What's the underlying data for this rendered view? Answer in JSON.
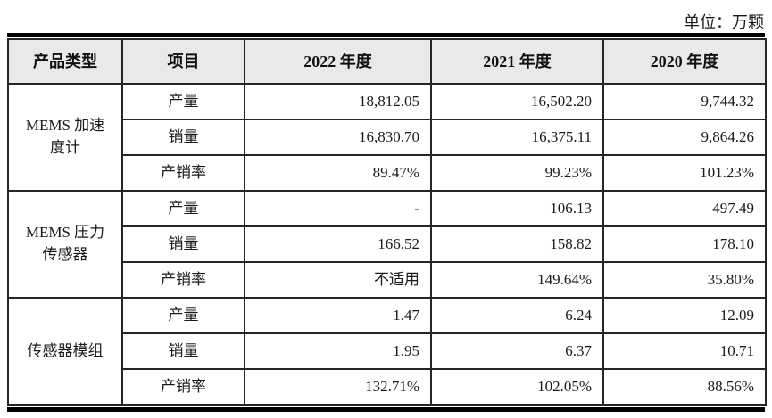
{
  "unit_label": "单位：万颗",
  "table": {
    "headers": [
      "产品类型",
      "项目",
      "2022 年度",
      "2021 年度",
      "2020 年度"
    ],
    "groups": [
      {
        "product": "MEMS 加速度计",
        "rows": [
          {
            "item": "产量",
            "values": [
              "18,812.05",
              "16,502.20",
              "9,744.32"
            ]
          },
          {
            "item": "销量",
            "values": [
              "16,830.70",
              "16,375.11",
              "9,864.26"
            ]
          },
          {
            "item": "产销率",
            "values": [
              "89.47%",
              "99.23%",
              "101.23%"
            ]
          }
        ]
      },
      {
        "product": "MEMS 压力传感器",
        "rows": [
          {
            "item": "产量",
            "values": [
              "-",
              "106.13",
              "497.49"
            ]
          },
          {
            "item": "销量",
            "values": [
              "166.52",
              "158.82",
              "178.10"
            ]
          },
          {
            "item": "产销率",
            "values": [
              "不适用",
              "149.64%",
              "35.80%"
            ]
          }
        ]
      },
      {
        "product": "传感器模组",
        "rows": [
          {
            "item": "产量",
            "values": [
              "1.47",
              "6.24",
              "12.09"
            ]
          },
          {
            "item": "销量",
            "values": [
              "1.95",
              "6.37",
              "10.71"
            ]
          },
          {
            "item": "产销率",
            "values": [
              "132.71%",
              "102.05%",
              "88.56%"
            ]
          }
        ]
      }
    ]
  }
}
